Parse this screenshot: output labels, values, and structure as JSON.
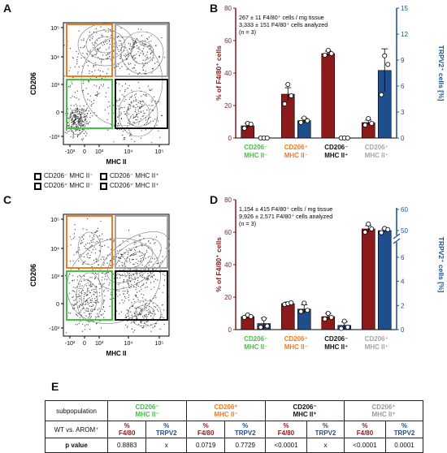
{
  "panels": {
    "A": "A",
    "B": "B",
    "C": "C",
    "D": "D",
    "E": "E"
  },
  "colors": {
    "green": "#3ec43e",
    "orange": "#f47a20",
    "black": "#111111",
    "gray": "#a5a5a5",
    "red": "#8b1a1a",
    "blue": "#1f4e8c"
  },
  "flow": {
    "y_label": "CD206",
    "x_label": "MHC II",
    "y_ticks": [
      "10⁵",
      "10⁴",
      "10³",
      "0",
      "-10³"
    ],
    "x_ticks": [
      "-10³",
      "0",
      "10³",
      "10⁴",
      "10⁵"
    ]
  },
  "legend": {
    "items": [
      {
        "label": "CD206⁻ MHC II⁻",
        "color": "#3ec43e"
      },
      {
        "label": "CD206⁻ MHC II⁺",
        "color": "#111111"
      },
      {
        "label": "CD206⁺ MHC II⁻",
        "color": "#f47a20"
      },
      {
        "label": "CD206⁺ MHC II⁺",
        "color": "#a5a5a5"
      }
    ]
  },
  "chart_data": [
    {
      "type": "bar",
      "panel": "B",
      "annotation": [
        "267 ± 11 F4/80⁺ cells / mg tissue",
        "3,333 ± 151 F4/80⁺ cells analyzed",
        "(n = 3)"
      ],
      "ylabel": "% of F4/80⁺ cells",
      "y2label": "TRPV2⁺ cells [%]",
      "ylim": [
        0,
        80
      ],
      "y2lim": [
        0,
        15
      ],
      "y_ticks": [
        "0",
        "20",
        "40",
        "60",
        "80"
      ],
      "y2_ticks": [
        "0",
        "3",
        "6",
        "9",
        "12",
        "15"
      ],
      "categories": [
        {
          "line1": "CD206⁻",
          "line2": "MHC II⁻",
          "color": "#3ec43e"
        },
        {
          "line1": "CD206⁺",
          "line2": "MHC II⁻",
          "color": "#f47a20"
        },
        {
          "line1": "CD206⁻",
          "line2": "MHC II⁺",
          "color": "#111111"
        },
        {
          "line1": "CD206⁺",
          "line2": "MHC II⁺",
          "color": "#a5a5a5"
        }
      ],
      "series": [
        {
          "axis": "left",
          "color": "#8b1a1a",
          "values": [
            7.5,
            27,
            52,
            9.5
          ],
          "errors": [
            1.5,
            4,
            1.5,
            1.5
          ],
          "points": [
            [
              6,
              9,
              8.5
            ],
            [
              21,
              33,
              26
            ],
            [
              51,
              54,
              52
            ],
            [
              8,
              12,
              9
            ]
          ]
        },
        {
          "axis": "right",
          "color": "#1f4e8c",
          "values": [
            0,
            2,
            0,
            7.8
          ],
          "errors": [
            0,
            0.3,
            0,
            2.5
          ],
          "points": [
            [
              0,
              0,
              0
            ],
            [
              1.8,
              2.3,
              2
            ],
            [
              0,
              0,
              0
            ],
            [
              5,
              9.5,
              8.5
            ]
          ]
        }
      ]
    },
    {
      "type": "bar",
      "panel": "D",
      "annotation": [
        "1,154 ± 415 F4/80⁺ cells / mg tissue",
        "9,926 ± 2,571 F4/80⁺ cells analyzed",
        "(n = 3)"
      ],
      "ylabel": "% of F4/80⁺ cells",
      "y2label": "TRPV2⁺ cells [%]",
      "ylim": [
        0,
        80
      ],
      "y_ticks": [
        "0",
        "20",
        "40",
        "60",
        "80"
      ],
      "y2_ticks_lower": [
        "0",
        "2",
        "4",
        "6"
      ],
      "y2_ticks_upper": [
        "50",
        "60"
      ],
      "categories": [
        {
          "line1": "CD206⁻",
          "line2": "MHC II⁻",
          "color": "#3ec43e"
        },
        {
          "line1": "CD206⁺",
          "line2": "MHC II⁻",
          "color": "#f47a20"
        },
        {
          "line1": "CD206⁻",
          "line2": "MHC II⁺",
          "color": "#111111"
        },
        {
          "line1": "CD206⁺",
          "line2": "MHC II⁺",
          "color": "#a5a5a5"
        }
      ],
      "series": [
        {
          "axis": "left",
          "color": "#8b1a1a",
          "values": [
            8,
            16,
            8,
            62
          ],
          "errors": [
            1,
            1,
            2,
            2
          ],
          "points": [
            [
              7.5,
              9,
              8
            ],
            [
              15.5,
              16,
              16.5
            ],
            [
              6.5,
              10,
              7.5
            ],
            [
              60,
              65,
              62
            ]
          ]
        },
        {
          "axis": "right",
          "color": "#1f4e8c",
          "values": [
            0.5,
            1.7,
            0.35,
            50
          ],
          "errors": [
            0.45,
            0.35,
            0.3,
            0.8
          ],
          "points": [
            [
              0.2,
              0.9,
              0.3
            ],
            [
              1.5,
              2.2,
              1.6
            ],
            [
              0.1,
              0.7,
              0.2
            ],
            [
              49,
              51,
              50.5
            ]
          ]
        }
      ]
    }
  ],
  "table": {
    "subpopulation_label": "subpopulation",
    "comparison_label": "WT vs. AROM⁺",
    "p_label": "p value",
    "groups": [
      {
        "line1": "CD206⁻",
        "line2": "MHC II⁻",
        "cls": "c-green"
      },
      {
        "line1": "CD206⁺",
        "line2": "MHC II⁻",
        "cls": "c-orange"
      },
      {
        "line1": "CD206⁻",
        "line2": "MHC II⁺",
        "cls": "c-black"
      },
      {
        "line1": "CD206⁺",
        "line2": "MHC II⁺",
        "cls": "c-gray"
      }
    ],
    "measure_f480": [
      "%",
      "F4/80"
    ],
    "measure_trpv2": [
      "%",
      "TRPV2"
    ],
    "p_values": [
      "0.8883",
      "x",
      "0.0719",
      "0.7729",
      "<0.0001",
      "x",
      "<0.0001",
      "0.0001"
    ]
  }
}
